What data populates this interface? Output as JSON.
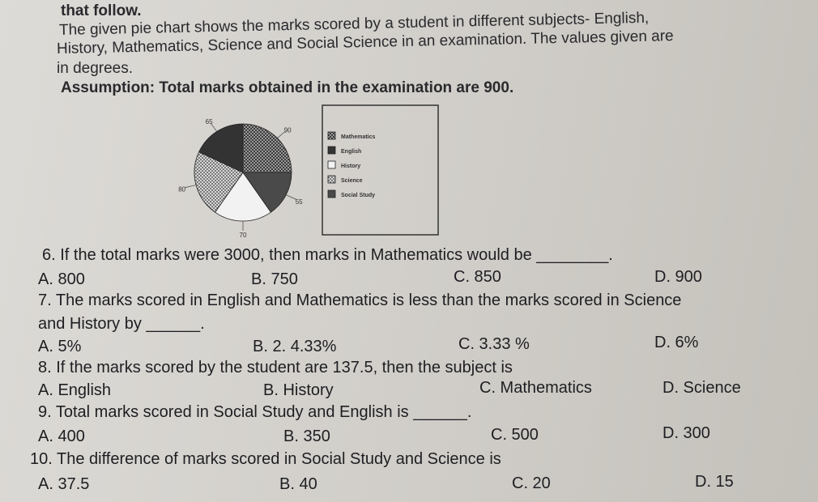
{
  "intro": {
    "lines": [
      "that follow.",
      "The given pie chart shows the marks scored by a student in different subjects- English,",
      "History, Mathematics, Science and Social Science in an examination. The values given are",
      "in degrees.",
      "Assumption: Total marks obtained in the examination are 900."
    ]
  },
  "chart_data": {
    "type": "pie",
    "categories": [
      "Mathematics",
      "English",
      "History",
      "Science",
      "Social Study"
    ],
    "values": [
      90,
      65,
      70,
      80,
      55
    ],
    "colors": [
      "#8a8a8a",
      "#333333",
      "#f2f2f2",
      "#b5b5b5",
      "#4a4a4a"
    ]
  },
  "questions": [
    {
      "lines": [
        "6. If the total marks were 3000, then marks in Mathematics would be ________."
      ],
      "options": [
        "A.  800",
        "B. 750",
        "C.  850",
        "D.  900"
      ]
    },
    {
      "lines": [
        "7. The marks scored in English and Mathematics is less than the marks scored in Science",
        "and History by  ______."
      ],
      "options": [
        "A.  5%",
        "B.  2. 4.33%",
        "C.  3.33 %",
        "D.  6%"
      ]
    },
    {
      "lines": [
        "8. If the marks scored by the student are 137.5, then the subject is"
      ],
      "options": [
        "A.  English",
        "B.  History",
        "C.  Mathematics",
        "D. Science"
      ]
    },
    {
      "lines": [
        "9. Total marks scored in Social Study and English is ______."
      ],
      "options": [
        "A.  400",
        "B.  350",
        "C. 500",
        "D. 300"
      ]
    },
    {
      "lines": [
        "10. The difference of marks scored in Social Study and Science is"
      ],
      "options": [
        "A.  37.5",
        "B. 40",
        "C.  20",
        "D.  15"
      ]
    }
  ]
}
